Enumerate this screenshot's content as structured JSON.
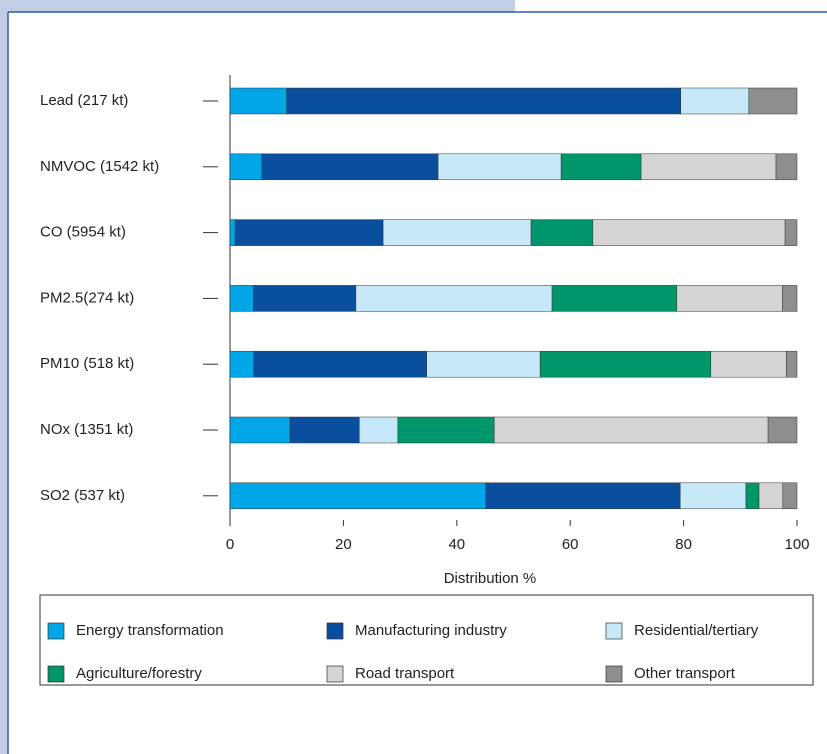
{
  "chart_data": {
    "type": "bar",
    "orientation": "horizontal",
    "stacked": true,
    "categories": [
      "Lead (217 kt)",
      "NMVOC (1542 kt)",
      "CO (5954 kt)",
      "PM2.5(274 kt)",
      "PM10 (518 kt)",
      "NOx (1351 kt)",
      "SO2 (537 kt)"
    ],
    "series": [
      {
        "name": "Energy transformation",
        "color": "#00a6e6",
        "values": [
          10,
          5.6,
          0.9,
          4.1,
          4.2,
          10.6,
          45.1
        ]
      },
      {
        "name": "Manufacturing industry",
        "color": "#0a4f9e",
        "values": [
          69.5,
          31.1,
          26.1,
          18.1,
          30.5,
          12.2,
          34.3
        ]
      },
      {
        "name": "Residential/tertiary",
        "color": "#c6e8f8",
        "values": [
          12,
          21.7,
          26.1,
          34.6,
          20,
          6.8,
          11.6
        ]
      },
      {
        "name": "Agriculture/forestry",
        "color": "#00956a",
        "values": [
          0,
          14.1,
          10.9,
          22,
          30.1,
          17,
          2.3
        ]
      },
      {
        "name": "Road transport",
        "color": "#d4d4d4",
        "values": [
          0,
          23.8,
          33.9,
          18.6,
          13.3,
          48.3,
          4.2
        ]
      },
      {
        "name": "Other transport",
        "color": "#8e8e8e",
        "values": [
          8.5,
          3.7,
          2.1,
          2.6,
          1.9,
          5.1,
          2.5
        ]
      }
    ],
    "xlim": [
      0,
      100
    ],
    "xticks": [
      0,
      20,
      40,
      60,
      80,
      100
    ],
    "xlabel": "Distribution  %"
  }
}
